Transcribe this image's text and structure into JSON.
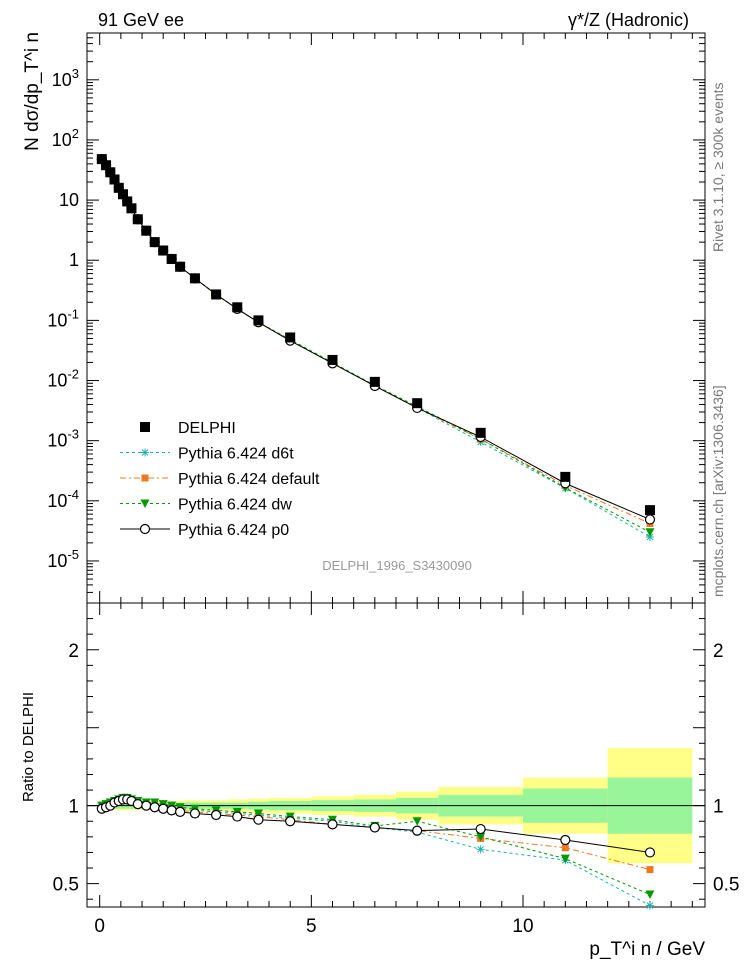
{
  "header": {
    "process": "91 GeV ee",
    "channel": "γ*/Z (Hadronic)"
  },
  "side_labels": {
    "rivet": "Rivet 3.1.10, ≥ 300k events",
    "source": "mcplots.cern.ch [arXiv:1306.3436]"
  },
  "chart_data": [
    {
      "type": "scatter",
      "panel": "main",
      "analysis_id": "DELPHI_1996_S3430090",
      "ylabel": "N dσ/dp_T^i n",
      "yscale": "log",
      "ylim": [
        2e-06,
        6000
      ],
      "xlim": [
        -0.3,
        14.3
      ],
      "y_tick_labels": [
        "10^-5",
        "10^-4",
        "10^-3",
        "10^-2",
        "10^-1",
        "1",
        "10",
        "10^2",
        "10^3"
      ],
      "legend_placement": "bottom-left",
      "x": [
        0.05,
        0.15,
        0.25,
        0.35,
        0.45,
        0.55,
        0.65,
        0.75,
        0.9,
        1.1,
        1.3,
        1.5,
        1.7,
        1.9,
        2.25,
        2.75,
        3.25,
        3.75,
        4.5,
        5.5,
        6.5,
        7.5,
        9.0,
        11.0,
        13.0
      ],
      "series": [
        {
          "name": "DELPHI",
          "color": "#000000",
          "marker": "square",
          "values": [
            48,
            38,
            29,
            22,
            16,
            12.5,
            9.5,
            7.3,
            4.8,
            3.1,
            2.0,
            1.45,
            1.05,
            0.78,
            0.5,
            0.27,
            0.165,
            0.1,
            0.052,
            0.022,
            0.0095,
            0.0042,
            0.00135,
            0.00025,
            7e-05
          ]
        },
        {
          "name": "Pythia 6.424 d6t",
          "color": "#20b2aa",
          "marker": "star",
          "values": [
            48,
            38,
            29,
            22,
            16,
            12.5,
            9.5,
            7.3,
            4.8,
            3.1,
            2.0,
            1.45,
            1.05,
            0.78,
            0.5,
            0.27,
            0.155,
            0.093,
            0.047,
            0.0199,
            0.0082,
            0.0035,
            0.00095,
            0.000162,
            2.5e-05
          ]
        },
        {
          "name": "Pythia 6.424 default",
          "color": "#ee7722",
          "marker": "square-small",
          "values": [
            48,
            38,
            29,
            22,
            16,
            12.5,
            9.5,
            7.3,
            4.8,
            3.1,
            2.0,
            1.45,
            1.05,
            0.78,
            0.5,
            0.27,
            0.155,
            0.093,
            0.047,
            0.0193,
            0.0082,
            0.0035,
            0.00106,
            0.00018,
            4.2e-05
          ]
        },
        {
          "name": "Pythia 6.424 dw",
          "color": "#009900",
          "marker": "triangle-down",
          "values": [
            48,
            38,
            29,
            22,
            16,
            12.5,
            9.5,
            7.3,
            4.8,
            3.1,
            2.0,
            1.45,
            1.05,
            0.78,
            0.5,
            0.27,
            0.155,
            0.093,
            0.048,
            0.0199,
            0.0083,
            0.0037,
            0.00107,
            0.000165,
            3e-05
          ]
        },
        {
          "name": "Pythia 6.424 p0",
          "color": "#000000",
          "marker": "circle-open",
          "values": [
            48,
            38,
            29,
            22,
            16,
            12.5,
            9.5,
            7.3,
            4.8,
            3.1,
            2.0,
            1.45,
            1.05,
            0.78,
            0.5,
            0.27,
            0.155,
            0.093,
            0.046,
            0.0193,
            0.0081,
            0.0035,
            0.00115,
            0.000195,
            4.9e-05
          ]
        }
      ]
    },
    {
      "type": "line",
      "panel": "ratio",
      "xlabel": "p_T^i n / GeV",
      "ylabel": "Ratio to DELPHI",
      "ylim": [
        0.35,
        2.3
      ],
      "xlim": [
        -0.3,
        14.3
      ],
      "y_ticks": [
        0.5,
        1,
        2
      ],
      "x_ticks": [
        0,
        5,
        10
      ],
      "x": [
        0.05,
        0.15,
        0.25,
        0.35,
        0.45,
        0.55,
        0.65,
        0.75,
        0.9,
        1.1,
        1.3,
        1.5,
        1.7,
        1.9,
        2.25,
        2.75,
        3.25,
        3.75,
        4.5,
        5.5,
        6.5,
        7.5,
        9.0,
        11.0,
        13.0
      ],
      "band_edges": [
        0,
        0.1,
        0.2,
        0.3,
        0.4,
        0.5,
        0.6,
        0.7,
        0.8,
        1.0,
        1.2,
        1.4,
        1.6,
        1.8,
        2.0,
        2.5,
        3.0,
        3.5,
        4.0,
        5.0,
        6.0,
        7.0,
        8.0,
        10.0,
        12.0,
        14.0
      ],
      "band_stat": [
        0.02,
        0.02,
        0.02,
        0.02,
        0.02,
        0.02,
        0.02,
        0.02,
        0.02,
        0.02,
        0.02,
        0.02,
        0.02,
        0.02,
        0.02,
        0.02,
        0.02,
        0.025,
        0.03,
        0.035,
        0.04,
        0.05,
        0.07,
        0.11,
        0.18
      ],
      "band_total": [
        0.03,
        0.03,
        0.03,
        0.03,
        0.03,
        0.03,
        0.03,
        0.03,
        0.03,
        0.03,
        0.03,
        0.03,
        0.03,
        0.03,
        0.035,
        0.035,
        0.04,
        0.045,
        0.05,
        0.06,
        0.07,
        0.09,
        0.12,
        0.18,
        0.37
      ],
      "series": [
        {
          "name": "Pythia 6.424 d6t",
          "color": "#20b2aa",
          "marker": "star",
          "values": [
            1.0,
            1.01,
            1.02,
            1.03,
            1.04,
            1.05,
            1.05,
            1.04,
            1.03,
            1.02,
            1.01,
            1.0,
            0.99,
            0.98,
            0.97,
            0.96,
            0.95,
            0.94,
            0.92,
            0.9,
            0.86,
            0.83,
            0.72,
            0.65,
            0.36
          ]
        },
        {
          "name": "Pythia 6.424 default",
          "color": "#ee7722",
          "marker": "square-small",
          "values": [
            0.99,
            1.0,
            1.01,
            1.02,
            1.03,
            1.04,
            1.04,
            1.03,
            1.02,
            1.01,
            1.0,
            0.99,
            0.98,
            0.97,
            0.96,
            0.95,
            0.94,
            0.93,
            0.91,
            0.88,
            0.86,
            0.84,
            0.79,
            0.73,
            0.59
          ]
        },
        {
          "name": "Pythia 6.424 dw",
          "color": "#009900",
          "marker": "triangle-down",
          "values": [
            1.0,
            1.01,
            1.02,
            1.03,
            1.04,
            1.05,
            1.05,
            1.04,
            1.03,
            1.02,
            1.02,
            1.01,
            1.0,
            0.99,
            0.98,
            0.97,
            0.96,
            0.95,
            0.93,
            0.91,
            0.87,
            0.9,
            0.8,
            0.66,
            0.43
          ]
        },
        {
          "name": "Pythia 6.424 p0",
          "color": "#000000",
          "marker": "circle-open",
          "values": [
            0.98,
            0.99,
            1.0,
            1.02,
            1.03,
            1.04,
            1.04,
            1.03,
            1.01,
            1.0,
            0.99,
            0.98,
            0.97,
            0.96,
            0.95,
            0.94,
            0.93,
            0.91,
            0.9,
            0.88,
            0.86,
            0.84,
            0.85,
            0.78,
            0.7
          ]
        }
      ]
    }
  ]
}
